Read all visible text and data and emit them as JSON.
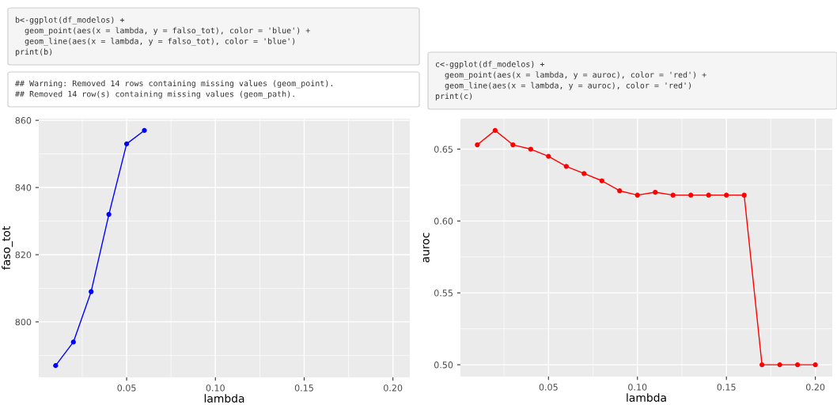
{
  "chart_data": [
    {
      "type": "line",
      "xlabel": "lambda",
      "ylabel": "faso_tot",
      "marker": "circle",
      "grid": true,
      "annotations": [
        "b<-ggplot(df_modelos) +\n  geom_point(aes(x = lambda, y = falso_tot), color = 'blue') +\n  geom_line(aes(x = lambda, y = falso_tot), color = 'blue')\nprint(b)",
        "## Warning: Removed 14 rows containing missing values (geom_point).\n## Removed 14 row(s) containing missing values (geom_path)."
      ],
      "x": [
        0.01,
        0.02,
        0.03,
        0.04,
        0.05,
        0.06
      ],
      "series": [
        {
          "color": "#0000ff",
          "values": [
            787,
            794,
            809,
            832,
            853,
            857
          ]
        }
      ],
      "xlim": [
        0.0005,
        0.2095
      ],
      "xticks": [
        {
          "value": 0.05,
          "label": "0.05"
        },
        {
          "value": 0.1,
          "label": "0.10"
        },
        {
          "value": 0.15,
          "label": "0.15"
        },
        {
          "value": 0.2,
          "label": "0.20"
        }
      ],
      "ylim": [
        783.5,
        860.5
      ],
      "yticks": [
        800,
        820,
        840,
        860
      ]
    },
    {
      "type": "line",
      "xlabel": "lambda",
      "ylabel": "auroc",
      "marker": "circle",
      "grid": true,
      "annotations": [
        "c<-ggplot(df_modelos) +\n  geom_point(aes(x = lambda, y = auroc), color = 'red') +\n  geom_line(aes(x = lambda, y = auroc), color = 'red')\nprint(c)"
      ],
      "x": [
        0.01,
        0.02,
        0.03,
        0.04,
        0.05,
        0.06,
        0.07,
        0.08,
        0.09,
        0.1,
        0.11,
        0.12,
        0.13,
        0.14,
        0.15,
        0.16,
        0.17,
        0.18,
        0.19,
        0.2
      ],
      "series": [
        {
          "color": "#ff0000",
          "values": [
            0.653,
            0.663,
            0.653,
            0.65,
            0.645,
            0.638,
            0.633,
            0.628,
            0.621,
            0.618,
            0.62,
            0.618,
            0.618,
            0.618,
            0.618,
            0.618,
            0.5,
            0.5,
            0.5,
            0.5
          ]
        }
      ],
      "xlim": [
        0.0005,
        0.2095
      ],
      "xticks": [
        {
          "value": 0.05,
          "label": "0.05"
        },
        {
          "value": 0.1,
          "label": "0.10"
        },
        {
          "value": 0.15,
          "label": "0.15"
        },
        {
          "value": 0.2,
          "label": "0.20"
        }
      ],
      "ylim": [
        0.4918,
        0.6712
      ],
      "yticks": [
        {
          "value": 0.5,
          "label": "0.50"
        },
        {
          "value": 0.55,
          "label": "0.55"
        },
        {
          "value": 0.6,
          "label": "0.60"
        },
        {
          "value": 0.65,
          "label": "0.65"
        }
      ]
    }
  ]
}
